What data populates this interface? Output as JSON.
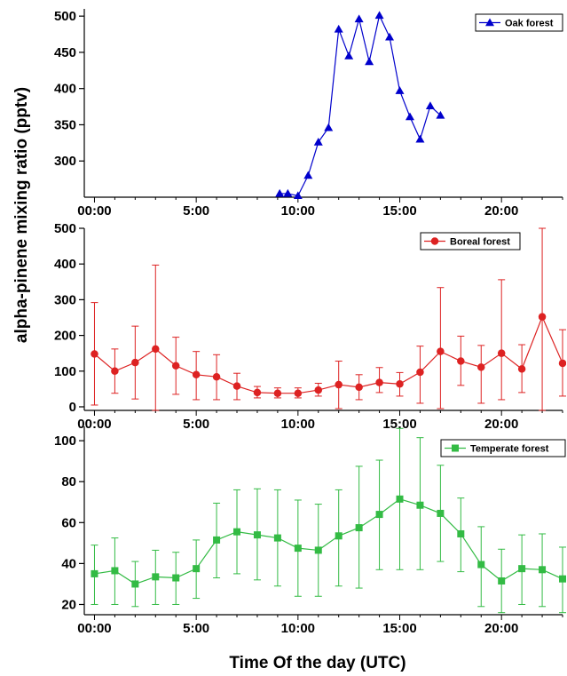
{
  "ylabel": "alpha-pinene mixing ratio (pptv)",
  "xlabel": "Time Of the day (UTC)",
  "chart_data": [
    {
      "type": "line",
      "series": [
        {
          "name": "Oak forest",
          "color": "#0000cc",
          "marker": "triangle"
        }
      ],
      "xlim": [
        -0.5,
        23
      ],
      "ylim": [
        250,
        510
      ],
      "x_ticks": [
        0,
        5,
        10,
        15,
        20
      ],
      "x_tick_labels": [
        "00:00",
        "5:00",
        "10:00",
        "15:00",
        "20:00"
      ],
      "y_ticks": [
        300,
        350,
        400,
        450,
        500
      ],
      "x": [
        9.1,
        9.5,
        10.0,
        10.5,
        11.0,
        11.5,
        12.0,
        12.5,
        13.0,
        13.5,
        14.0,
        14.5,
        15.0,
        15.5,
        16.0,
        16.5,
        17.0
      ],
      "y": [
        255,
        255,
        252,
        280,
        326,
        346,
        482,
        445,
        496,
        437,
        501,
        471,
        397,
        361,
        330,
        376,
        363
      ],
      "legend": "top-right"
    },
    {
      "type": "line",
      "series": [
        {
          "name": "Boreal forest",
          "color": "#dd2222",
          "marker": "circle"
        }
      ],
      "xlim": [
        -0.5,
        23
      ],
      "ylim": [
        -10,
        500
      ],
      "x_ticks": [
        0,
        5,
        10,
        15,
        20
      ],
      "x_tick_labels": [
        "00:00",
        "5:00",
        "10:00",
        "15:00",
        "20:00"
      ],
      "y_ticks": [
        0,
        100,
        200,
        300,
        400,
        500
      ],
      "x": [
        0,
        1,
        2,
        3,
        4,
        5,
        6,
        7,
        8,
        9,
        10,
        11,
        12,
        13,
        14,
        15,
        16,
        17,
        18,
        19,
        20,
        21,
        22,
        23
      ],
      "y": [
        148,
        100,
        124,
        162,
        115,
        90,
        84,
        58,
        40,
        38,
        38,
        47,
        62,
        55,
        68,
        64,
        97,
        155,
        128,
        111,
        150,
        106,
        252,
        122
      ],
      "err_lo": [
        5,
        38,
        22,
        -10,
        35,
        20,
        20,
        20,
        25,
        25,
        25,
        30,
        -5,
        20,
        40,
        30,
        10,
        -5,
        60,
        10,
        20,
        40,
        -10,
        30
      ],
      "err_hi": [
        292,
        162,
        226,
        397,
        195,
        155,
        146,
        94,
        57,
        53,
        53,
        66,
        128,
        90,
        110,
        96,
        170,
        334,
        198,
        172,
        356,
        174,
        500,
        216
      ],
      "legend": "top-right"
    },
    {
      "type": "line",
      "series": [
        {
          "name": "Temperate forest",
          "color": "#33bb44",
          "marker": "square"
        }
      ],
      "xlim": [
        -0.5,
        23
      ],
      "ylim": [
        15,
        107
      ],
      "x_ticks": [
        0,
        5,
        10,
        15,
        20
      ],
      "x_tick_labels": [
        "00:00",
        "5:00",
        "10:00",
        "15:00",
        "20:00"
      ],
      "y_ticks": [
        20,
        40,
        60,
        80,
        100
      ],
      "x": [
        0,
        1,
        2,
        3,
        4,
        5,
        6,
        7,
        8,
        9,
        10,
        11,
        12,
        13,
        14,
        15,
        16,
        17,
        18,
        19,
        20,
        21,
        22,
        23
      ],
      "y": [
        35,
        36.5,
        30,
        33.5,
        33,
        37.5,
        51.5,
        55.5,
        54,
        52.5,
        47.5,
        46.5,
        53.5,
        57.5,
        64,
        71.5,
        68.5,
        64.5,
        54.5,
        39.5,
        31.5,
        37.5,
        37,
        32.5
      ],
      "err_lo": [
        20,
        20,
        19,
        20,
        20,
        23,
        33,
        35,
        32,
        29,
        24,
        24,
        29,
        28,
        37,
        37,
        37,
        41,
        36,
        19,
        16,
        20,
        19,
        16
      ],
      "err_hi": [
        49,
        52.5,
        41,
        46.5,
        45.5,
        51.5,
        69.5,
        76,
        76.5,
        76,
        71,
        69,
        76,
        87.5,
        90.5,
        106,
        101.5,
        88,
        72,
        58,
        47,
        54,
        54.5,
        48
      ],
      "legend": "top-right"
    }
  ]
}
